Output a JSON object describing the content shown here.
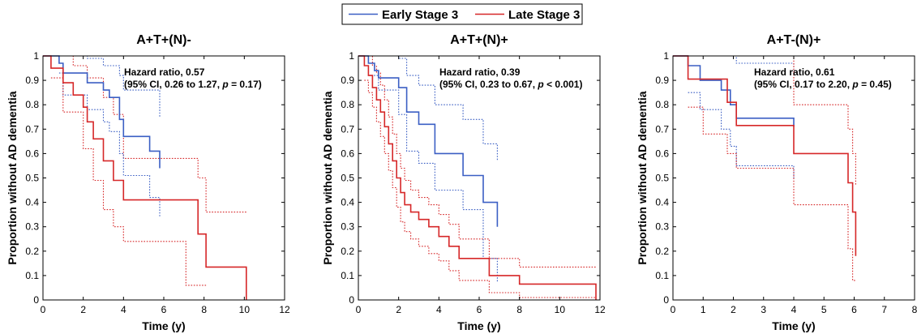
{
  "legend": {
    "entries": [
      {
        "label": "Early Stage 3",
        "color": "#3b5fc4"
      },
      {
        "label": "Late Stage 3",
        "color": "#d62728"
      }
    ]
  },
  "colors": {
    "early": "#3b5fc4",
    "late": "#d62728",
    "axis": "#000000"
  },
  "chart_data": [
    {
      "type": "line",
      "title": "A+T+(N)-",
      "xlabel": "Time (y)",
      "ylabel": "Proportion without AD dementia",
      "xlim": [
        0,
        12
      ],
      "ylim": [
        0,
        1
      ],
      "xticks": [
        0,
        2,
        4,
        6,
        8,
        10,
        12
      ],
      "yticks": [
        0,
        0.1,
        0.2,
        0.3,
        0.4,
        0.5,
        0.6,
        0.7,
        0.8,
        0.9,
        1
      ],
      "grid": false,
      "annotation": {
        "line1": "Hazard ratio, 0.57",
        "line2_prefix": "(95% CI, 0.26 to 1.27, ",
        "p_symbol": "p",
        "line2_suffix": " = 0.17)"
      },
      "series": [
        {
          "name": "Early Stage 3",
          "role": "estimate",
          "color": "early",
          "x": [
            0,
            0.8,
            0.8,
            1.0,
            1.0,
            2.2,
            2.2,
            3.0,
            3.0,
            3.3,
            3.3,
            3.8,
            3.8,
            4.0,
            4.0,
            4.5,
            4.5,
            5.3,
            5.3,
            5.8,
            5.8
          ],
          "y": [
            1,
            1,
            0.97,
            0.97,
            0.93,
            0.93,
            0.89,
            0.89,
            0.86,
            0.86,
            0.83,
            0.83,
            0.74,
            0.74,
            0.67,
            0.67,
            0.67,
            0.67,
            0.61,
            0.61,
            0.54
          ]
        },
        {
          "name": "Early Stage 3",
          "role": "ci-upper",
          "color": "early",
          "x": [
            0.8,
            1.0,
            1.0,
            2.2,
            2.2,
            3.0,
            3.0,
            3.8,
            3.8,
            4.0,
            4.0,
            5.8,
            5.8
          ],
          "y": [
            1,
            1,
            1,
            1,
            0.99,
            0.99,
            0.96,
            0.96,
            0.92,
            0.92,
            0.86,
            0.86,
            0.75
          ]
        },
        {
          "name": "Early Stage 3",
          "role": "ci-lower",
          "color": "early",
          "x": [
            0.8,
            1.0,
            1.0,
            2.2,
            2.2,
            3.0,
            3.0,
            3.3,
            3.3,
            3.8,
            3.8,
            4.0,
            4.0,
            5.3,
            5.3,
            5.8,
            5.8
          ],
          "y": [
            0.93,
            0.93,
            0.84,
            0.84,
            0.78,
            0.78,
            0.73,
            0.73,
            0.69,
            0.69,
            0.6,
            0.6,
            0.51,
            0.51,
            0.42,
            0.42,
            0.34
          ]
        },
        {
          "name": "Late Stage 3",
          "role": "estimate",
          "color": "late",
          "x": [
            0,
            0.4,
            0.4,
            1.0,
            1.0,
            1.5,
            1.5,
            2.0,
            2.0,
            2.2,
            2.2,
            2.5,
            2.5,
            3.0,
            3.0,
            3.5,
            3.5,
            4.0,
            4.0,
            7.7,
            7.7,
            8.1,
            8.1,
            10.1,
            10.1
          ],
          "y": [
            1,
            1,
            0.95,
            0.95,
            0.89,
            0.89,
            0.84,
            0.84,
            0.79,
            0.79,
            0.73,
            0.73,
            0.66,
            0.66,
            0.57,
            0.57,
            0.49,
            0.49,
            0.41,
            0.41,
            0.27,
            0.27,
            0.135,
            0.135,
            0
          ]
        },
        {
          "name": "Late Stage 3",
          "role": "ci-upper",
          "color": "late",
          "x": [
            0.4,
            1.5,
            1.5,
            2.2,
            2.2,
            3.0,
            3.0,
            3.5,
            3.5,
            4.0,
            4.0,
            7.7,
            7.7,
            8.1,
            8.1,
            10.1
          ],
          "y": [
            1,
            1,
            0.96,
            0.96,
            0.91,
            0.91,
            0.83,
            0.83,
            0.76,
            0.76,
            0.58,
            0.58,
            0.5,
            0.5,
            0.36,
            0.36
          ]
        },
        {
          "name": "Late Stage 3",
          "role": "ci-lower",
          "color": "late",
          "x": [
            0.4,
            1.0,
            1.0,
            2.0,
            2.0,
            2.5,
            2.5,
            3.0,
            3.0,
            3.5,
            3.5,
            4.0,
            4.0,
            7.1,
            7.1,
            8.1
          ],
          "y": [
            0.91,
            0.91,
            0.77,
            0.77,
            0.62,
            0.62,
            0.49,
            0.49,
            0.37,
            0.37,
            0.3,
            0.3,
            0.24,
            0.24,
            0.06,
            0.06
          ]
        }
      ]
    },
    {
      "type": "line",
      "title": "A+T+(N)+",
      "xlabel": "Time (y)",
      "ylabel": "Proportion without AD dementia",
      "xlim": [
        0,
        12
      ],
      "ylim": [
        0,
        1
      ],
      "xticks": [
        0,
        2,
        4,
        6,
        8,
        10,
        12
      ],
      "yticks": [
        0,
        0.1,
        0.2,
        0.3,
        0.4,
        0.5,
        0.6,
        0.7,
        0.8,
        0.9,
        1
      ],
      "grid": false,
      "annotation": {
        "line1": "Hazard ratio, 0.39",
        "line2_prefix": "(95% CI, 0.23 to 0.67, ",
        "p_symbol": "p",
        "line2_suffix": " < 0.001)"
      },
      "series": [
        {
          "name": "Early Stage 3",
          "role": "estimate",
          "color": "early",
          "x": [
            0,
            0.5,
            0.5,
            0.8,
            0.8,
            1.0,
            1.0,
            2.0,
            2.0,
            2.4,
            2.4,
            3.0,
            3.0,
            3.8,
            3.8,
            5.2,
            5.2,
            6.2,
            6.2,
            6.9,
            6.9
          ],
          "y": [
            1,
            1,
            0.97,
            0.97,
            0.94,
            0.94,
            0.91,
            0.91,
            0.87,
            0.87,
            0.77,
            0.77,
            0.72,
            0.72,
            0.6,
            0.6,
            0.51,
            0.51,
            0.4,
            0.4,
            0.3
          ]
        },
        {
          "name": "Early Stage 3",
          "role": "ci-upper",
          "color": "early",
          "x": [
            0.5,
            2.0,
            2.0,
            2.4,
            2.4,
            3.0,
            3.0,
            3.8,
            3.8,
            5.2,
            5.2,
            6.2,
            6.2,
            6.9,
            6.9
          ],
          "y": [
            1,
            1,
            0.99,
            0.99,
            0.92,
            0.92,
            0.88,
            0.88,
            0.8,
            0.8,
            0.74,
            0.74,
            0.64,
            0.64,
            0.57
          ]
        },
        {
          "name": "Early Stage 3",
          "role": "ci-lower",
          "color": "early",
          "x": [
            0.5,
            1.0,
            1.0,
            2.0,
            2.0,
            2.4,
            2.4,
            3.0,
            3.0,
            3.8,
            3.8,
            5.2,
            5.2,
            6.2,
            6.2,
            6.9,
            6.9
          ],
          "y": [
            0.92,
            0.92,
            0.86,
            0.86,
            0.76,
            0.76,
            0.61,
            0.61,
            0.56,
            0.56,
            0.45,
            0.45,
            0.37,
            0.37,
            0.17,
            0.17,
            0.07
          ]
        },
        {
          "name": "Late Stage 3",
          "role": "estimate",
          "color": "late",
          "x": [
            0,
            0.3,
            0.3,
            0.5,
            0.5,
            0.7,
            0.7,
            0.9,
            0.9,
            1.1,
            1.1,
            1.3,
            1.3,
            1.5,
            1.5,
            1.7,
            1.7,
            1.9,
            1.9,
            2.1,
            2.1,
            2.3,
            2.3,
            2.6,
            2.6,
            3.0,
            3.0,
            3.5,
            3.5,
            4.0,
            4.0,
            4.5,
            4.5,
            5.0,
            5.0,
            6.5,
            6.5,
            8.0,
            8.0,
            11.8,
            11.8
          ],
          "y": [
            1,
            1,
            0.96,
            0.96,
            0.92,
            0.92,
            0.87,
            0.87,
            0.82,
            0.82,
            0.77,
            0.77,
            0.71,
            0.71,
            0.64,
            0.64,
            0.57,
            0.57,
            0.5,
            0.5,
            0.44,
            0.44,
            0.39,
            0.39,
            0.36,
            0.36,
            0.33,
            0.33,
            0.3,
            0.3,
            0.26,
            0.26,
            0.22,
            0.22,
            0.17,
            0.17,
            0.1,
            0.1,
            0.065,
            0.065,
            0
          ]
        },
        {
          "name": "Late Stage 3",
          "role": "ci-upper",
          "color": "late",
          "x": [
            0.3,
            0.7,
            0.7,
            0.9,
            0.9,
            1.1,
            1.1,
            1.3,
            1.3,
            1.5,
            1.5,
            1.7,
            1.7,
            1.9,
            1.9,
            2.1,
            2.1,
            2.3,
            2.3,
            2.6,
            2.6,
            3.0,
            3.0,
            3.5,
            3.5,
            4.0,
            4.0,
            4.5,
            4.5,
            5.0,
            5.0,
            6.5,
            6.5,
            8.0,
            8.0,
            11.8
          ],
          "y": [
            1,
            1,
            0.96,
            0.96,
            0.93,
            0.93,
            0.88,
            0.88,
            0.82,
            0.82,
            0.75,
            0.75,
            0.68,
            0.68,
            0.6,
            0.6,
            0.54,
            0.54,
            0.49,
            0.49,
            0.45,
            0.45,
            0.42,
            0.42,
            0.39,
            0.39,
            0.35,
            0.35,
            0.31,
            0.31,
            0.25,
            0.25,
            0.17,
            0.17,
            0.135,
            0.135
          ]
        },
        {
          "name": "Late Stage 3",
          "role": "ci-lower",
          "color": "late",
          "x": [
            0.3,
            0.5,
            0.5,
            0.7,
            0.7,
            0.9,
            0.9,
            1.1,
            1.1,
            1.3,
            1.3,
            1.5,
            1.5,
            1.7,
            1.7,
            1.9,
            1.9,
            2.1,
            2.1,
            2.3,
            2.3,
            2.6,
            2.6,
            3.0,
            3.0,
            3.5,
            3.5,
            4.0,
            4.0,
            4.5,
            4.5,
            5.0,
            5.0,
            6.5,
            6.5,
            8.0,
            8.0,
            11.8
          ],
          "y": [
            0.9,
            0.9,
            0.85,
            0.85,
            0.79,
            0.79,
            0.73,
            0.73,
            0.67,
            0.67,
            0.6,
            0.6,
            0.53,
            0.53,
            0.46,
            0.46,
            0.38,
            0.38,
            0.32,
            0.32,
            0.28,
            0.28,
            0.25,
            0.25,
            0.22,
            0.22,
            0.19,
            0.19,
            0.16,
            0.16,
            0.12,
            0.12,
            0.08,
            0.08,
            0.03,
            0.03,
            0.01,
            0.01
          ]
        }
      ]
    },
    {
      "type": "line",
      "title": "A+T-(N)+",
      "xlabel": "Time (y)",
      "ylabel": "Proportion without AD dementia",
      "xlim": [
        0,
        8
      ],
      "ylim": [
        0,
        1
      ],
      "xticks": [
        0,
        1,
        2,
        3,
        4,
        5,
        6,
        7,
        8
      ],
      "yticks": [
        0,
        0.1,
        0.2,
        0.3,
        0.4,
        0.5,
        0.6,
        0.7,
        0.8,
        0.9,
        1
      ],
      "grid": false,
      "annotation": {
        "line1": "Hazard ratio, 0.61",
        "line2_prefix": "(95% CI, 0.17 to 2.20, ",
        "p_symbol": "p",
        "line2_suffix": " = 0.45)"
      },
      "series": [
        {
          "name": "Early Stage 3",
          "role": "estimate",
          "color": "early",
          "x": [
            0,
            0.5,
            0.5,
            0.9,
            0.9,
            1.6,
            1.6,
            1.9,
            1.9,
            2.1,
            2.1,
            4.0,
            4.0
          ],
          "y": [
            1,
            1,
            0.96,
            0.96,
            0.9,
            0.9,
            0.86,
            0.86,
            0.8,
            0.8,
            0.745,
            0.745,
            0.71
          ]
        },
        {
          "name": "Early Stage 3",
          "role": "ci-upper",
          "color": "early",
          "x": [
            0.5,
            2.1,
            2.1,
            4.0,
            4.0
          ],
          "y": [
            1,
            1,
            0.97,
            0.97,
            0.93
          ]
        },
        {
          "name": "Early Stage 3",
          "role": "ci-lower",
          "color": "early",
          "x": [
            0.5,
            0.9,
            0.9,
            1.6,
            1.6,
            1.9,
            1.9,
            2.1,
            2.1,
            4.0,
            4.0
          ],
          "y": [
            0.85,
            0.85,
            0.78,
            0.78,
            0.7,
            0.7,
            0.63,
            0.63,
            0.55,
            0.55,
            0.5
          ]
        },
        {
          "name": "Late Stage 3",
          "role": "estimate",
          "color": "late",
          "x": [
            0,
            0.5,
            0.5,
            1.0,
            1.0,
            1.8,
            1.8,
            2.1,
            2.1,
            4.0,
            4.0,
            5.8,
            5.8,
            5.95,
            5.95,
            6.05,
            6.05
          ],
          "y": [
            1,
            1,
            0.905,
            0.905,
            0.905,
            0.905,
            0.81,
            0.81,
            0.715,
            0.715,
            0.6,
            0.6,
            0.48,
            0.48,
            0.36,
            0.36,
            0.18
          ]
        },
        {
          "name": "Late Stage 3",
          "role": "ci-upper",
          "color": "late",
          "x": [
            0.5,
            4.0,
            4.0,
            5.8,
            5.8,
            5.95,
            5.95,
            6.05,
            6.05
          ],
          "y": [
            1,
            1,
            0.8,
            0.8,
            0.7,
            0.7,
            0.6,
            0.6,
            0.47
          ]
        },
        {
          "name": "Late Stage 3",
          "role": "ci-lower",
          "color": "late",
          "x": [
            0.5,
            1.0,
            1.0,
            1.8,
            1.8,
            2.1,
            2.1,
            4.0,
            4.0,
            5.8,
            5.8,
            5.95,
            5.95,
            6.05
          ],
          "y": [
            0.79,
            0.79,
            0.68,
            0.68,
            0.6,
            0.6,
            0.54,
            0.54,
            0.39,
            0.39,
            0.21,
            0.21,
            0.08,
            0.08
          ]
        }
      ]
    }
  ]
}
